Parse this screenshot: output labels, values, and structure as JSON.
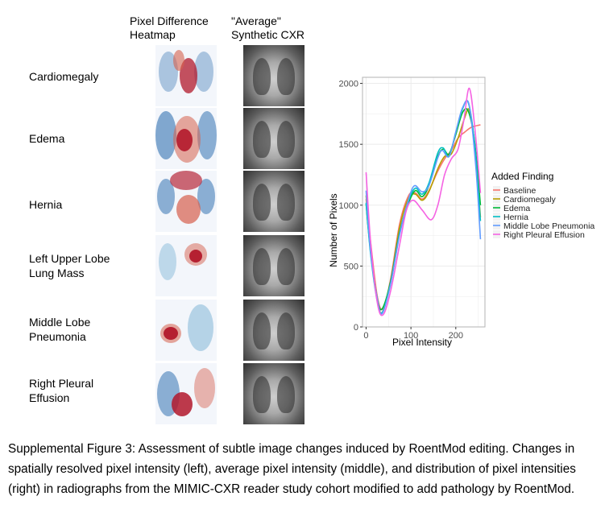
{
  "column_headers": {
    "heatmap": "Pixel Difference\nHeatmap",
    "cxr": "\"Average\"\nSynthetic CXR"
  },
  "rows": [
    {
      "label": "Cardiomegaly"
    },
    {
      "label": "Edema"
    },
    {
      "label": "Hernia"
    },
    {
      "label": "Left Upper Lobe\nLung Mass"
    },
    {
      "label": "Middle Lobe\nPneumonia"
    },
    {
      "label": "Right Pleural\nEffusion"
    }
  ],
  "caption": "Supplemental Figure 3: Assessment of subtle image changes induced by RoentMod editing. Changes in spatially resolved pixel intensity (left), average pixel intensity (middle), and distribution of pixel intensities (right) in radiographs from the MIMIC-CXR reader study cohort modified to add pathology by RoentMod.",
  "chart_data": {
    "type": "line",
    "xlabel": "Pixel Intensity",
    "ylabel": "Number of Pixels",
    "xlim": [
      -8,
      265
    ],
    "ylim": [
      0,
      2050
    ],
    "xticks": [
      0,
      100,
      200
    ],
    "yticks": [
      0,
      500,
      1000,
      1500,
      2000
    ],
    "grid": true,
    "legend_title": "Added Finding",
    "legend_position": "right",
    "series": [
      {
        "name": "Baseline",
        "color": "#F8766D",
        "x": [
          0,
          10,
          25,
          38,
          55,
          75,
          95,
          110,
          125,
          140,
          160,
          175,
          190,
          205,
          220,
          235,
          255
        ],
        "y": [
          1050,
          700,
          250,
          150,
          400,
          850,
          1080,
          1100,
          1050,
          1120,
          1280,
          1380,
          1450,
          1550,
          1600,
          1640,
          1660
        ]
      },
      {
        "name": "Cardiomegaly",
        "color": "#B79F00",
        "x": [
          0,
          10,
          25,
          36,
          55,
          75,
          95,
          110,
          125,
          140,
          160,
          175,
          190,
          205,
          220,
          230,
          242,
          255
        ],
        "y": [
          1080,
          640,
          230,
          120,
          380,
          820,
          1060,
          1090,
          1040,
          1110,
          1300,
          1400,
          1420,
          1550,
          1720,
          1780,
          1500,
          900
        ]
      },
      {
        "name": "Edema",
        "color": "#00BA38",
        "x": [
          0,
          10,
          25,
          36,
          55,
          75,
          95,
          110,
          125,
          140,
          160,
          172,
          185,
          200,
          215,
          228,
          242,
          255
        ],
        "y": [
          1010,
          620,
          230,
          150,
          380,
          780,
          1020,
          1120,
          1070,
          1160,
          1400,
          1460,
          1420,
          1580,
          1760,
          1770,
          1520,
          1000
        ]
      },
      {
        "name": "Hernia",
        "color": "#00BFC4",
        "x": [
          0,
          10,
          25,
          36,
          55,
          75,
          95,
          110,
          125,
          140,
          160,
          172,
          185,
          200,
          215,
          228,
          242,
          255
        ],
        "y": [
          1020,
          600,
          210,
          120,
          360,
          770,
          1040,
          1140,
          1090,
          1180,
          1430,
          1470,
          1400,
          1600,
          1790,
          1840,
          1500,
          870
        ]
      },
      {
        "name": "Middle Lobe Pneumonia",
        "color": "#619CFF",
        "x": [
          0,
          10,
          25,
          36,
          55,
          75,
          95,
          108,
          125,
          140,
          160,
          170,
          185,
          200,
          215,
          230,
          245,
          255
        ],
        "y": [
          1120,
          620,
          230,
          110,
          360,
          760,
          1050,
          1160,
          1110,
          1160,
          1390,
          1450,
          1400,
          1600,
          1800,
          1820,
          1300,
          720
        ]
      },
      {
        "name": "Right Pleural Effusion",
        "color": "#F564E3",
        "x": [
          0,
          10,
          25,
          38,
          55,
          75,
          90,
          105,
          125,
          145,
          160,
          175,
          190,
          205,
          218,
          230,
          242,
          255
        ],
        "y": [
          1270,
          700,
          200,
          100,
          300,
          680,
          960,
          1040,
          960,
          880,
          1000,
          1250,
          1380,
          1460,
          1700,
          1960,
          1650,
          1100
        ]
      }
    ]
  },
  "colors": {
    "heat_red": "#b2182b",
    "heat_blue": "#2166ac",
    "panel_border": "#b3b3b3",
    "grid": "#ebebeb"
  }
}
